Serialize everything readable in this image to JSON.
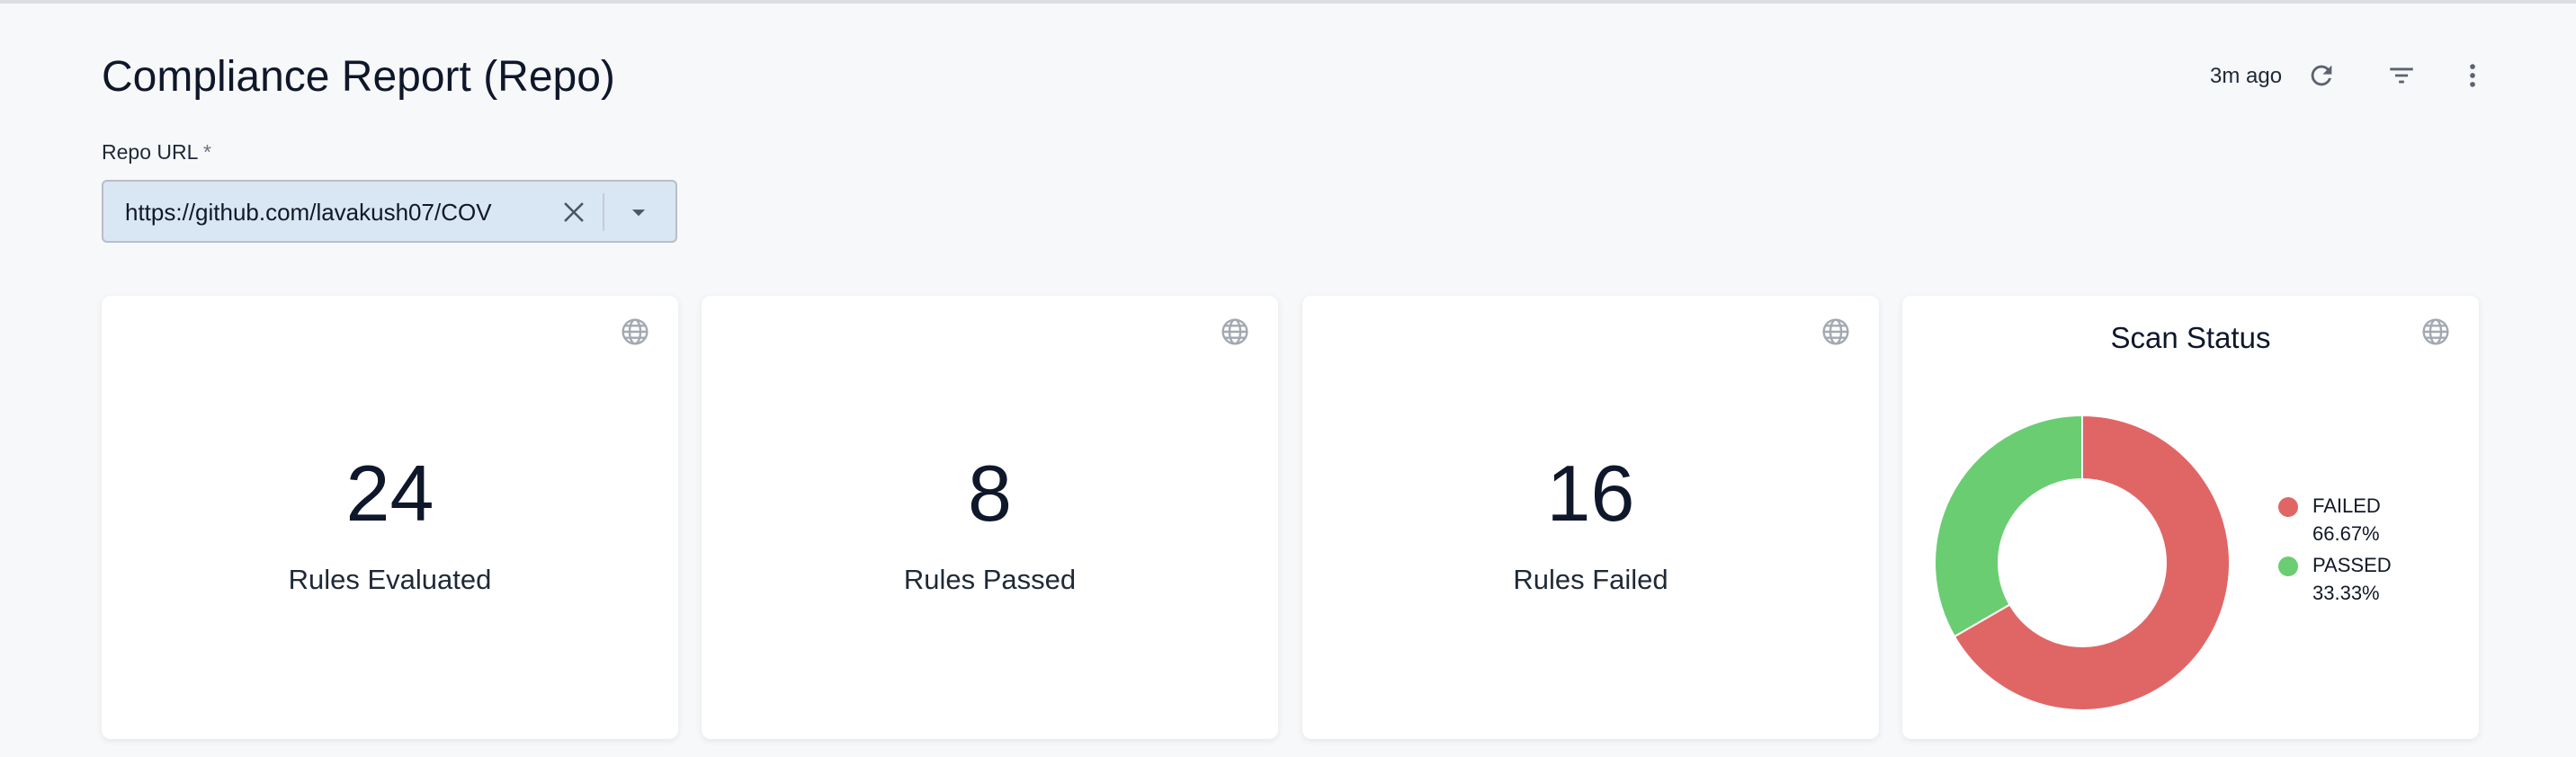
{
  "header": {
    "title": "Compliance Report (Repo)",
    "last_updated": "3m ago",
    "icons": [
      "refresh-icon",
      "filter-icon",
      "more-vert-icon"
    ]
  },
  "filter": {
    "label": "Repo URL",
    "required_mark": "*",
    "value": "https://github.com/lavakush07/COV"
  },
  "cards": [
    {
      "value": "24",
      "label": "Rules Evaluated"
    },
    {
      "value": "8",
      "label": "Rules Passed"
    },
    {
      "value": "16",
      "label": "Rules Failed"
    }
  ],
  "chart_data": {
    "type": "pie",
    "donut": true,
    "title": "Scan Status",
    "legend_placement": "right",
    "slices": [
      {
        "name": "FAILED",
        "value": 66.67,
        "label": "66.67%",
        "color": "#e06666"
      },
      {
        "name": "PASSED",
        "value": 33.33,
        "label": "33.33%",
        "color": "#6acd72"
      }
    ]
  }
}
